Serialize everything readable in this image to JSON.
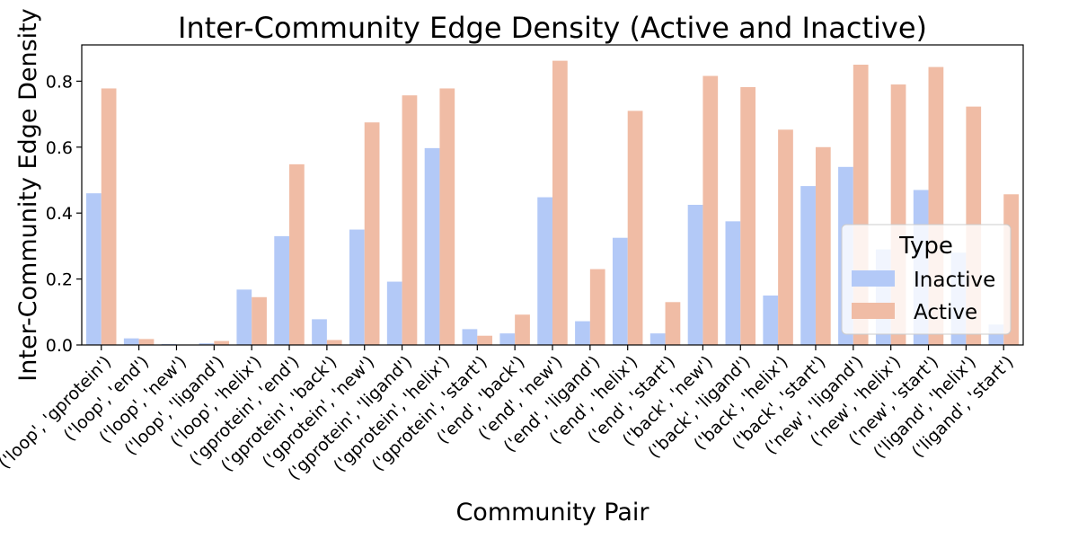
{
  "chart_data": {
    "type": "bar",
    "title": "Inter-Community Edge Density (Active and Inactive)",
    "xlabel": "Community Pair",
    "ylabel": "Inter-Community Edge Density",
    "ylim": [
      0,
      0.91
    ],
    "yticks": [
      "0.0",
      "0.2",
      "0.4",
      "0.6",
      "0.8"
    ],
    "grid": false,
    "legend": {
      "title": "Type",
      "placement": "center-right"
    },
    "categories": [
      "('loop', 'gprotein')",
      "('loop', 'end')",
      "('loop', 'new')",
      "('loop', 'ligand')",
      "('loop', 'helix')",
      "('gprotein', 'end')",
      "('gprotein', 'back')",
      "('gprotein', 'new')",
      "('gprotein', 'ligand')",
      "('gprotein', 'helix')",
      "('gprotein', 'start')",
      "('end', 'back')",
      "('end', 'new')",
      "('end', 'ligand')",
      "('end', 'helix')",
      "('end', 'start')",
      "('back', 'new')",
      "('back', 'ligand')",
      "('back', 'helix')",
      "('back', 'start')",
      "('new', 'ligand')",
      "('new', 'helix')",
      "('new', 'start')",
      "('ligand', 'helix')",
      "('ligand', 'start')"
    ],
    "series": [
      {
        "name": "Inactive",
        "color": "#b3c9f7",
        "values": [
          0.46,
          0.02,
          0.003,
          0.005,
          0.168,
          0.33,
          0.078,
          0.35,
          0.192,
          0.597,
          0.048,
          0.035,
          0.448,
          0.072,
          0.325,
          0.035,
          0.425,
          0.375,
          0.15,
          0.482,
          0.54,
          0.29,
          0.47,
          0.28,
          0.062
        ]
      },
      {
        "name": "Active",
        "color": "#f0bca5",
        "values": [
          0.778,
          0.018,
          0.0,
          0.012,
          0.145,
          0.548,
          0.015,
          0.675,
          0.757,
          0.778,
          0.028,
          0.092,
          0.862,
          0.23,
          0.71,
          0.13,
          0.816,
          0.782,
          0.653,
          0.6,
          0.85,
          0.79,
          0.843,
          0.723,
          0.457
        ]
      }
    ]
  }
}
